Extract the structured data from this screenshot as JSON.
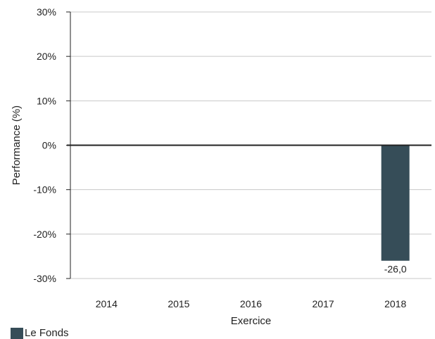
{
  "colors": {
    "bar": "#364d58",
    "grid": "#c8c8c8",
    "axis": "#222222",
    "zero_line": "#222222"
  },
  "chart_data": {
    "type": "bar",
    "title": "",
    "xlabel": "Exercice",
    "ylabel": "Performance (%)",
    "categories": [
      "2014",
      "2015",
      "2016",
      "2017",
      "2018"
    ],
    "series": [
      {
        "name": "Le Fonds",
        "values": [
          null,
          null,
          null,
          null,
          -26.0
        ],
        "data_labels": [
          "",
          "",
          "",
          "",
          "-26,0"
        ]
      }
    ],
    "ylim": [
      -30,
      30
    ],
    "yticks": [
      30,
      20,
      10,
      0,
      -10,
      -20,
      -30
    ],
    "ytick_labels": [
      "30%",
      "20%",
      "10%",
      "0%",
      "-10%",
      "-20%",
      "-30%"
    ],
    "grid": true,
    "legend_position": "bottom-left"
  },
  "legend": {
    "label": "Le Fonds"
  }
}
